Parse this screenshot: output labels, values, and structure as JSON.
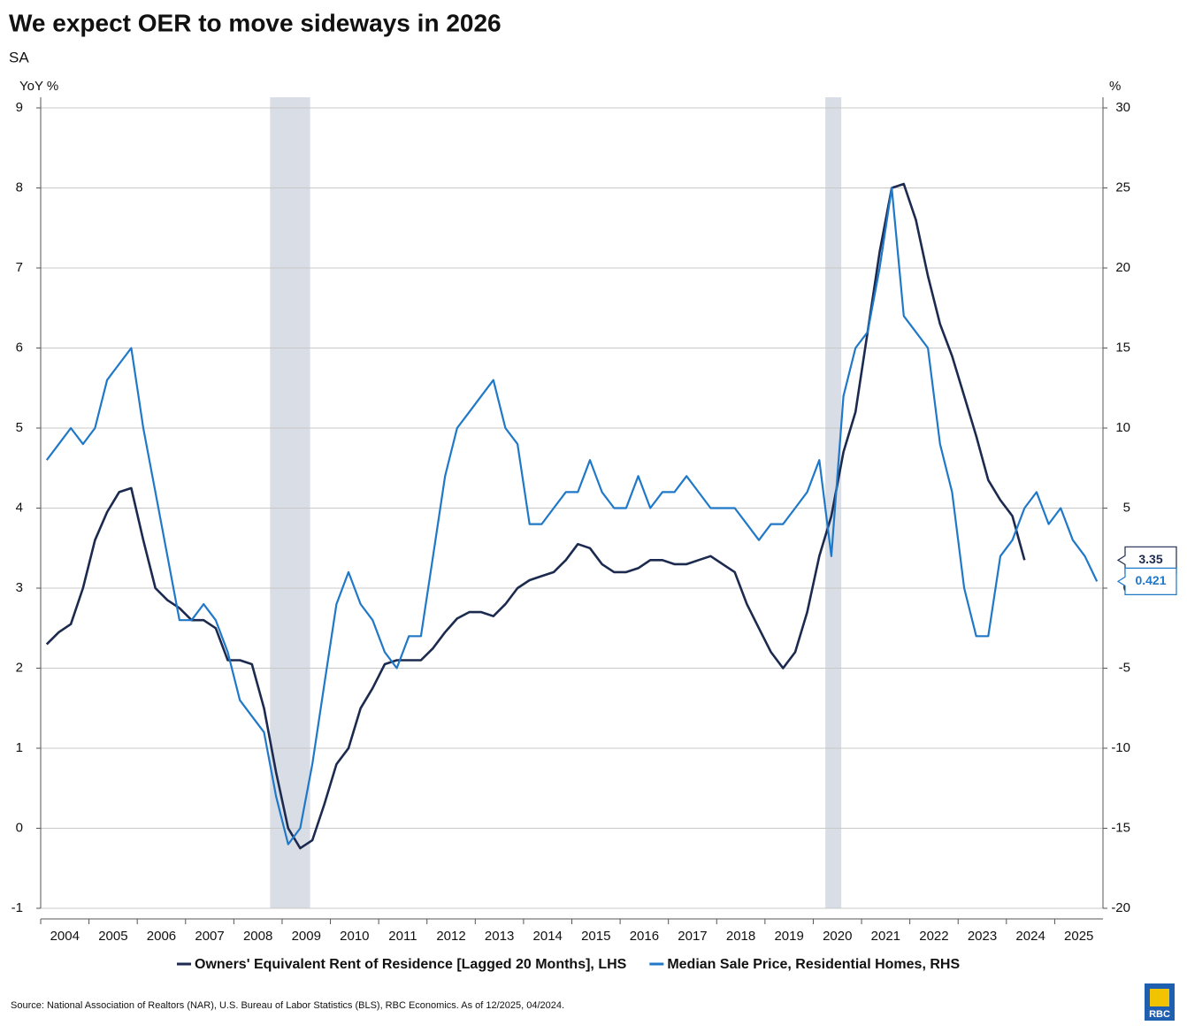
{
  "chart_data": {
    "type": "line",
    "title": "We expect OER to move sideways in 2026",
    "subtitle": "SA",
    "y_label": "YoY %",
    "y2_label": "%",
    "source": "Source: National Association of Realtors (NAR), U.S. Bureau of Labor Statistics (BLS), RBC Economics. As of 12/2025, 04/2024.",
    "logo_text": "RBC",
    "x": [
      2004.125,
      2004.375,
      2004.625,
      2004.875,
      2005.125,
      2005.375,
      2005.625,
      2005.875,
      2006.125,
      2006.375,
      2006.625,
      2006.875,
      2007.125,
      2007.375,
      2007.625,
      2007.875,
      2008.125,
      2008.375,
      2008.625,
      2008.875,
      2009.125,
      2009.375,
      2009.625,
      2009.875,
      2010.125,
      2010.375,
      2010.625,
      2010.875,
      2011.125,
      2011.375,
      2011.625,
      2011.875,
      2012.125,
      2012.375,
      2012.625,
      2012.875,
      2013.125,
      2013.375,
      2013.625,
      2013.875,
      2014.125,
      2014.375,
      2014.625,
      2014.875,
      2015.125,
      2015.375,
      2015.625,
      2015.875,
      2016.125,
      2016.375,
      2016.625,
      2016.875,
      2017.125,
      2017.375,
      2017.625,
      2017.875,
      2018.125,
      2018.375,
      2018.625,
      2018.875,
      2019.125,
      2019.375,
      2019.625,
      2019.875,
      2020.125,
      2020.375,
      2020.625,
      2020.875,
      2021.125,
      2021.375,
      2021.625,
      2021.875,
      2022.125,
      2022.375,
      2022.625,
      2022.875,
      2023.125,
      2023.375,
      2023.625,
      2023.875,
      2024.125,
      2024.375,
      2024.625,
      2024.875,
      2025.125,
      2025.375,
      2025.625,
      2025.875
    ],
    "xlim": [
      2004,
      2026
    ],
    "xticks": [
      {
        "value": 2004.5,
        "label": "2004"
      },
      {
        "value": 2005.5,
        "label": "2005"
      },
      {
        "value": 2006.5,
        "label": "2006"
      },
      {
        "value": 2007.5,
        "label": "2007"
      },
      {
        "value": 2008.5,
        "label": "2008"
      },
      {
        "value": 2009.5,
        "label": "2009"
      },
      {
        "value": 2010.5,
        "label": "2010"
      },
      {
        "value": 2011.5,
        "label": "2011"
      },
      {
        "value": 2012.5,
        "label": "2012"
      },
      {
        "value": 2013.5,
        "label": "2013"
      },
      {
        "value": 2014.5,
        "label": "2014"
      },
      {
        "value": 2015.5,
        "label": "2015"
      },
      {
        "value": 2016.5,
        "label": "2016"
      },
      {
        "value": 2017.5,
        "label": "2017"
      },
      {
        "value": 2018.5,
        "label": "2018"
      },
      {
        "value": 2019.5,
        "label": "2019"
      },
      {
        "value": 2020.5,
        "label": "2020"
      },
      {
        "value": 2021.5,
        "label": "2021"
      },
      {
        "value": 2022.5,
        "label": "2022"
      },
      {
        "value": 2023.5,
        "label": "2023"
      },
      {
        "value": 2024.5,
        "label": "2024"
      },
      {
        "value": 2025.5,
        "label": "2025"
      }
    ],
    "ylim": [
      -1,
      9
    ],
    "yticks": [
      -1,
      0,
      1,
      2,
      3,
      4,
      5,
      6,
      7,
      8,
      9
    ],
    "y2lim": [
      -20,
      30
    ],
    "y2ticks": [
      -20,
      -15,
      -10,
      -5,
      0,
      5,
      10,
      15,
      20,
      25,
      30
    ],
    "grid": true,
    "shaded_periods": [
      [
        2008.75,
        2009.58
      ],
      [
        2020.25,
        2020.58
      ]
    ],
    "series": [
      {
        "name": "Owners' Equivalent Rent of Residence [Lagged 20 Months], LHS",
        "color": "#1b2a4e",
        "values": [
          2.3,
          2.45,
          2.55,
          3.0,
          3.6,
          3.95,
          4.2,
          4.25,
          3.6,
          3.0,
          2.85,
          2.75,
          2.6,
          2.6,
          2.5,
          2.1,
          2.1,
          2.05,
          1.5,
          0.7,
          0.0,
          -0.25,
          -0.15,
          0.3,
          0.8,
          1.0,
          1.5,
          1.75,
          2.05,
          2.1,
          2.1,
          2.1,
          2.25,
          2.45,
          2.62,
          2.7,
          2.7,
          2.65,
          2.8,
          3.0,
          3.1,
          3.15,
          3.2,
          3.35,
          3.55,
          3.5,
          3.3,
          3.2,
          3.2,
          3.25,
          3.35,
          3.35,
          3.3,
          3.3,
          3.35,
          3.4,
          3.3,
          3.2,
          2.8,
          2.5,
          2.2,
          2.0,
          2.2,
          2.7,
          3.4,
          3.9,
          4.7,
          5.2,
          6.2,
          7.2,
          8.0,
          8.05,
          7.6,
          6.9,
          6.3,
          5.9,
          5.4,
          4.9,
          4.35,
          4.1,
          3.9,
          3.35,
          null,
          null,
          null,
          null,
          null,
          null
        ]
      },
      {
        "name": "Median Sale Price, Residential Homes, RHS",
        "color": "#1f78c8",
        "axis": "y2",
        "values": [
          8,
          9,
          10,
          9,
          10,
          13,
          14,
          15,
          10,
          6,
          2,
          -2,
          -2,
          -1,
          -2,
          -4,
          -7,
          -8,
          -9,
          -13,
          -16,
          -15,
          -11,
          -6,
          -1,
          1,
          -1,
          -2,
          -4,
          -5,
          -3,
          -3,
          2,
          7,
          10,
          11,
          12,
          13,
          10,
          9,
          4,
          4,
          5,
          6,
          6,
          8,
          6,
          5,
          5,
          7,
          5,
          6,
          6,
          7,
          6,
          5,
          5,
          5,
          4,
          3,
          4,
          4,
          5,
          6,
          8,
          2,
          12,
          15,
          16,
          20,
          25,
          17,
          16,
          15,
          9,
          6,
          0,
          -3,
          -3,
          2,
          3,
          5,
          6,
          4,
          5,
          3,
          2,
          0.421
        ]
      }
    ]
  }
}
